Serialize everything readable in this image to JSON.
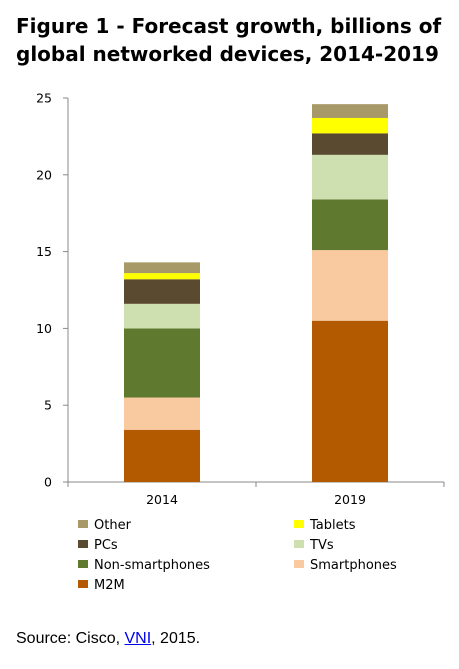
{
  "title": {
    "line1": "Figure 1 - Forecast growth, billions of",
    "line2": "global networked devices, 2014-2019"
  },
  "source": {
    "prefix": "Source: Cisco, ",
    "link_text": "VNI",
    "suffix": ", 2015."
  },
  "chart_data": {
    "type": "bar",
    "stacked": true,
    "categories": [
      "2014",
      "2019"
    ],
    "ylim": [
      0,
      25
    ],
    "yticks": [
      0,
      5,
      10,
      15,
      20,
      25
    ],
    "grid": false,
    "legend_position": "bottom",
    "series": [
      {
        "name": "M2M",
        "color": "#b35900",
        "values": [
          3.4,
          10.5
        ]
      },
      {
        "name": "Smartphones",
        "color": "#f9c9a0",
        "values": [
          2.1,
          4.6
        ]
      },
      {
        "name": "Non-smartphones",
        "color": "#5f7a2e",
        "values": [
          4.5,
          3.3
        ]
      },
      {
        "name": "TVs",
        "color": "#cfe0b0",
        "values": [
          1.6,
          2.9
        ]
      },
      {
        "name": "PCs",
        "color": "#5a4b30",
        "values": [
          1.6,
          1.4
        ]
      },
      {
        "name": "Tablets",
        "color": "#ffff00",
        "values": [
          0.4,
          1.0
        ]
      },
      {
        "name": "Other",
        "color": "#a89968",
        "values": [
          0.7,
          0.9
        ]
      }
    ]
  },
  "legend": [
    {
      "label": "Other",
      "color": "#a89968",
      "col": 0,
      "row": 0
    },
    {
      "label": "Tablets",
      "color": "#ffff00",
      "col": 1,
      "row": 0
    },
    {
      "label": "PCs",
      "color": "#5a4b30",
      "col": 0,
      "row": 1
    },
    {
      "label": "TVs",
      "color": "#cfe0b0",
      "col": 1,
      "row": 1
    },
    {
      "label": "Non-smartphones",
      "color": "#5f7a2e",
      "col": 0,
      "row": 2
    },
    {
      "label": "Smartphones",
      "color": "#f9c9a0",
      "col": 1,
      "row": 2
    },
    {
      "label": "M2M",
      "color": "#b35900",
      "col": 0,
      "row": 3
    }
  ]
}
